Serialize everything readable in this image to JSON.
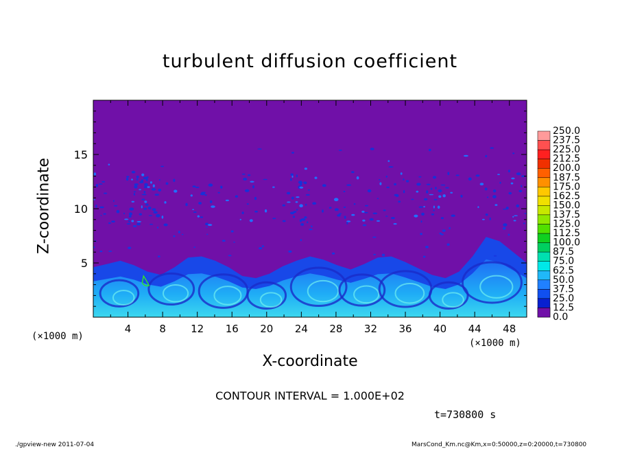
{
  "chart_data": {
    "type": "heatmap",
    "title": "turbulent diffusion coefficient",
    "xlabel": "X-coordinate",
    "ylabel": "Z-coordinate",
    "x_unit": "(×1000 m)",
    "x_unit_right": "(×1000 m)",
    "xlim": [
      0,
      50
    ],
    "ylim": [
      0,
      20
    ],
    "x_ticks": [
      "4",
      "8",
      "12",
      "16",
      "20",
      "24",
      "28",
      "32",
      "36",
      "40",
      "44",
      "48"
    ],
    "y_ticks": [
      "5",
      "10",
      "15"
    ],
    "colorbar": {
      "levels": [
        "250.0",
        "237.5",
        "225.0",
        "212.5",
        "200.0",
        "187.5",
        "175.0",
        "162.5",
        "150.0",
        "137.5",
        "125.0",
        "112.5",
        "100.0",
        "87.5",
        "75.0",
        "62.5",
        "50.0",
        "37.5",
        "25.0",
        "12.5",
        "0.0"
      ],
      "colors": [
        "#ff9a9a",
        "#ff5050",
        "#ff2020",
        "#f03000",
        "#ff6000",
        "#ff9000",
        "#ffc800",
        "#f0e000",
        "#c8e800",
        "#90e800",
        "#50e000",
        "#10d020",
        "#00d060",
        "#00e0b0",
        "#00e8e8",
        "#20b8f8",
        "#2080ff",
        "#1050f0",
        "#0820d0",
        "#1010a8",
        "#7010a8"
      ]
    },
    "contour_interval": "CONTOUR INTERVAL = 1.000E+02",
    "time": "t=730800 s"
  },
  "footer": {
    "left": "./gpview-new   2011-07-04",
    "right": "MarsCond_Km.nc@Km,x=0:50000,z=0:20000,t=730800"
  },
  "colors": {
    "background_field": "#7010a8",
    "low_field": "#1030e0",
    "frame": "#000000"
  }
}
